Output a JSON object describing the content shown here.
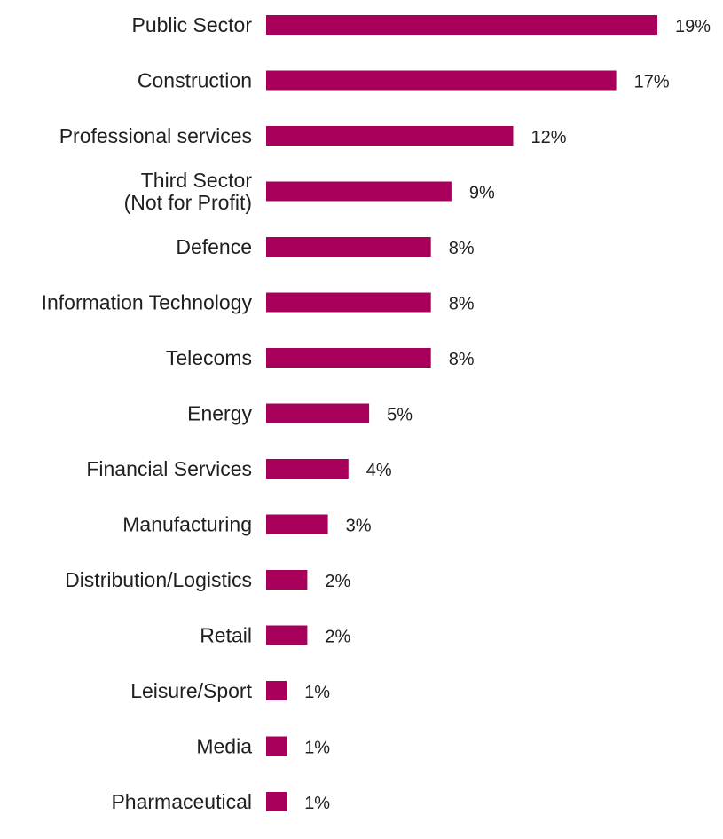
{
  "chart_data": {
    "type": "bar",
    "orientation": "horizontal",
    "title": "",
    "xlabel": "",
    "ylabel": "",
    "grid": false,
    "bar_color": "#a8005a",
    "categories": [
      [
        "Public Sector"
      ],
      [
        "Construction"
      ],
      [
        "Professional services"
      ],
      [
        "Third Sector",
        "(Not for Profit)"
      ],
      [
        "Defence"
      ],
      [
        "Information Technology"
      ],
      [
        "Telecoms"
      ],
      [
        "Energy"
      ],
      [
        "Financial Services"
      ],
      [
        "Manufacturing"
      ],
      [
        "Distribution/Logistics"
      ],
      [
        "Retail"
      ],
      [
        "Leisure/Sport"
      ],
      [
        "Media"
      ],
      [
        "Pharmaceutical"
      ]
    ],
    "values": [
      19,
      17,
      12,
      9,
      8,
      8,
      8,
      5,
      4,
      3,
      2,
      2,
      1,
      1,
      1
    ],
    "value_labels": [
      "19%",
      "17%",
      "12%",
      "9%",
      "8%",
      "8%",
      "8%",
      "5%",
      "4%",
      "3%",
      "2%",
      "2%",
      "1%",
      "1%",
      "1%"
    ],
    "xlim": [
      0,
      19
    ]
  }
}
